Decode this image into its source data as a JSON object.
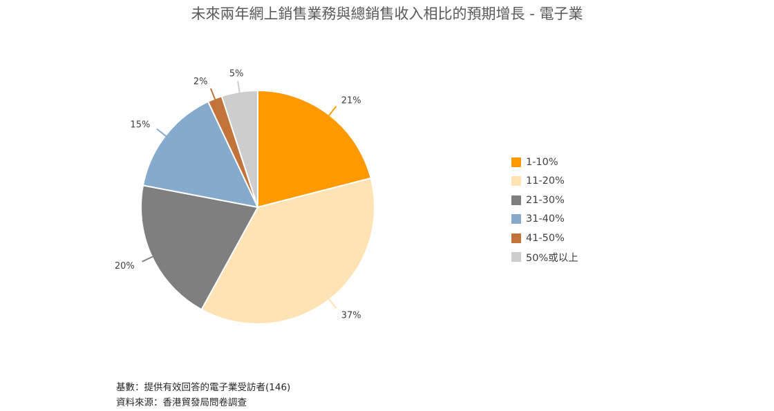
{
  "chart_data": {
    "type": "pie",
    "title": "未來兩年網上銷售業務與總銷售收入相比的預期增長 - 電子業",
    "categories": [
      "1-10%",
      "11-20%",
      "21-30%",
      "31-40%",
      "41-50%",
      "50%或以上"
    ],
    "values": [
      21,
      37,
      20,
      15,
      2,
      5
    ],
    "value_labels": [
      "21%",
      "37%",
      "20%",
      "15%",
      "2%",
      "5%"
    ],
    "colors": [
      "#FF9900",
      "#FFE3B5",
      "#7F7F7F",
      "#85AACB",
      "#C2733A",
      "#CDCDCD"
    ],
    "legend": "right",
    "start": "12-o'clock",
    "direction": "clockwise"
  },
  "footer": {
    "base": "基數：提供有效回答的電子業受訪者(146)",
    "source": "資料來源：香港貿發局問卷調查"
  }
}
